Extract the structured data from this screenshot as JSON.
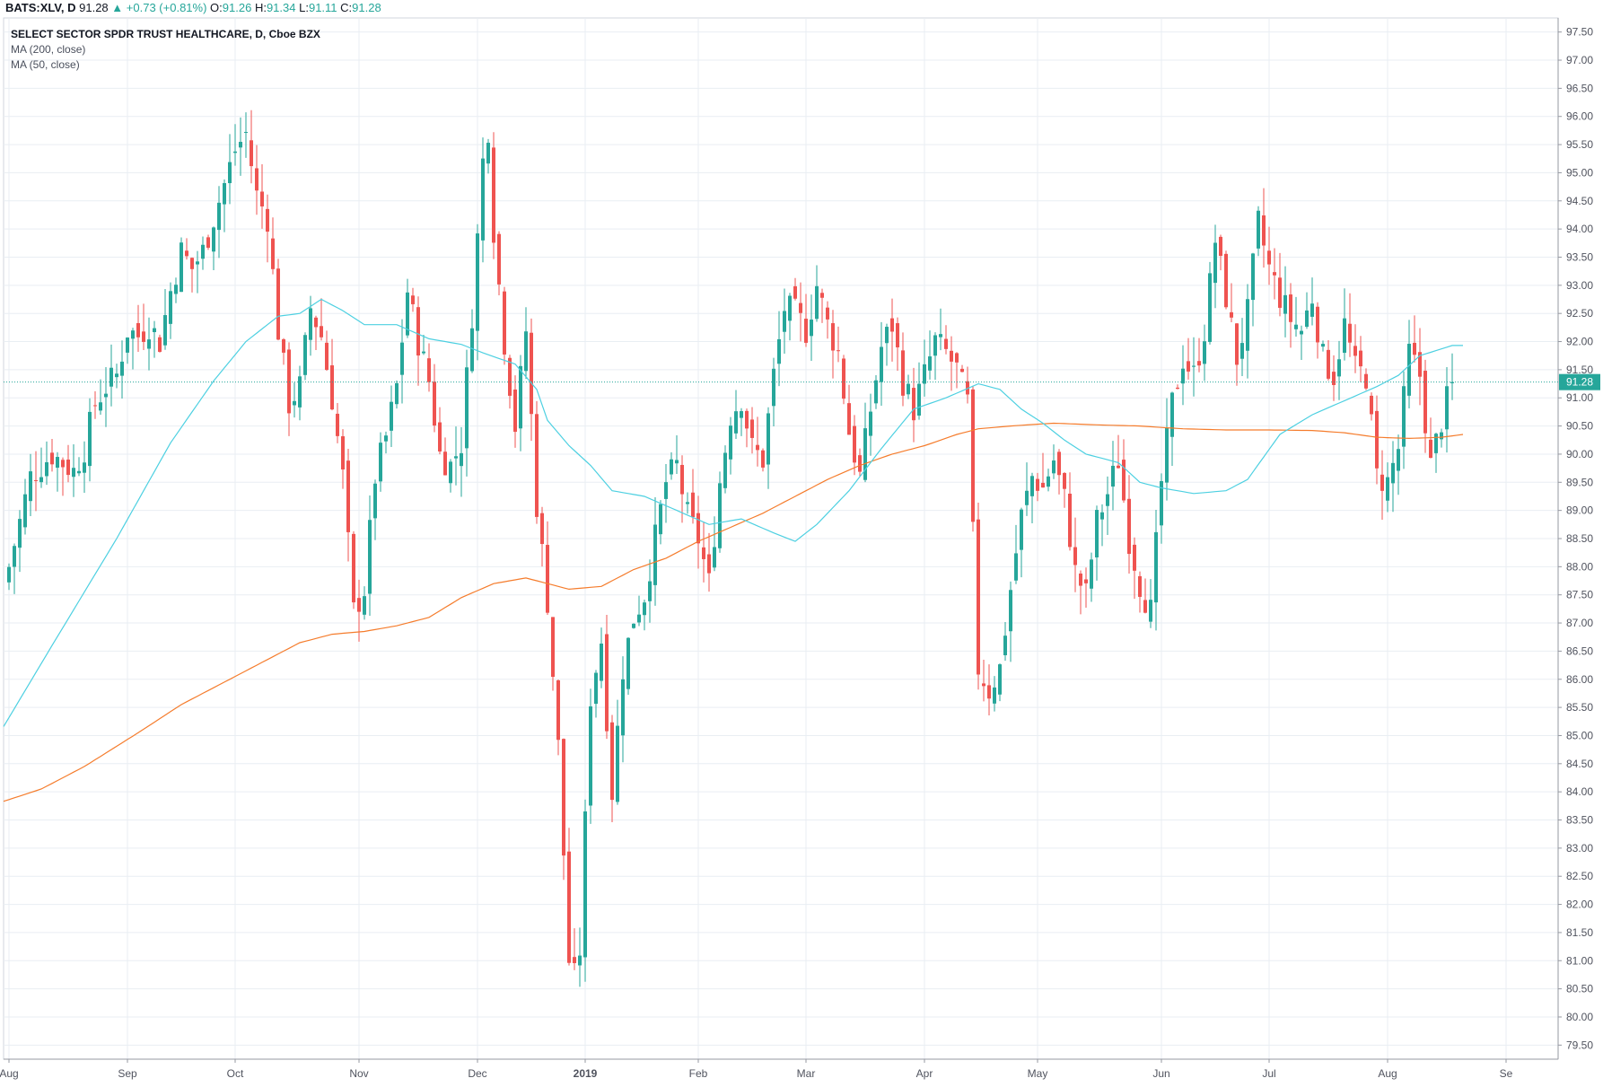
{
  "header": {
    "symbol": "BATS:XLV, D",
    "last": "91.28",
    "change": "+0.73 (+0.81%)",
    "open_label": "O:",
    "open": "91.26",
    "high_label": "H:",
    "high": "91.34",
    "low_label": "L:",
    "low": "91.11",
    "close_label": "C:",
    "close": "91.28"
  },
  "legend": {
    "title": "SELECT SECTOR SPDR TRUST HEALTHCARE, D, Cboe BZX",
    "ma200": "MA (200, close)",
    "ma50": "MA (50, close)"
  },
  "colors": {
    "up": "#26a69a",
    "down": "#ef5350",
    "ma50": "#4dd0e1",
    "ma200": "#f57c2c",
    "grid": "#e9eef3",
    "price_line": "#26a69a"
  },
  "chart_data": {
    "type": "candlestick",
    "title": "SELECT SECTOR SPDR TRUST HEALTHCARE, D, Cboe BZX",
    "ylim": [
      79.25,
      97.75
    ],
    "y_ticks": [
      "79.50",
      "80.00",
      "80.50",
      "81.00",
      "81.50",
      "82.00",
      "82.50",
      "83.00",
      "83.50",
      "84.00",
      "84.50",
      "85.00",
      "85.50",
      "86.00",
      "86.50",
      "87.00",
      "87.50",
      "88.00",
      "88.50",
      "89.00",
      "89.50",
      "90.00",
      "90.50",
      "91.00",
      "91.50",
      "92.00",
      "92.50",
      "93.00",
      "93.50",
      "94.00",
      "94.50",
      "95.00",
      "95.50",
      "96.00",
      "96.50",
      "97.00",
      "97.50"
    ],
    "x_ticks": [
      {
        "label": "Aug",
        "t": 0
      },
      {
        "label": "Sep",
        "t": 22
      },
      {
        "label": "Oct",
        "t": 42
      },
      {
        "label": "Nov",
        "t": 65
      },
      {
        "label": "Dec",
        "t": 87
      },
      {
        "label": "2019",
        "t": 107
      },
      {
        "label": "Feb",
        "t": 128
      },
      {
        "label": "Mar",
        "t": 148
      },
      {
        "label": "Apr",
        "t": 170
      },
      {
        "label": "May",
        "t": 191
      },
      {
        "label": "Jun",
        "t": 214
      },
      {
        "label": "Jul",
        "t": 234
      },
      {
        "label": "Aug",
        "t": 256
      },
      {
        "label": "Se",
        "t": 278
      }
    ],
    "last_price": 91.28,
    "last_price_label": "91.28",
    "ma50_anchors": [
      [
        -2,
        85.0
      ],
      [
        8,
        86.6
      ],
      [
        20,
        88.5
      ],
      [
        30,
        90.2
      ],
      [
        38,
        91.3
      ],
      [
        44,
        92.0
      ],
      [
        50,
        92.45
      ],
      [
        54,
        92.5
      ],
      [
        58,
        92.75
      ],
      [
        62,
        92.55
      ],
      [
        66,
        92.3
      ],
      [
        72,
        92.3
      ],
      [
        78,
        92.05
      ],
      [
        84,
        91.95
      ],
      [
        88,
        91.8
      ],
      [
        94,
        91.6
      ],
      [
        98,
        91.15
      ],
      [
        100,
        90.6
      ],
      [
        104,
        90.15
      ],
      [
        108,
        89.8
      ],
      [
        112,
        89.35
      ],
      [
        118,
        89.25
      ],
      [
        124,
        89.0
      ],
      [
        130,
        88.75
      ],
      [
        136,
        88.85
      ],
      [
        142,
        88.6
      ],
      [
        146,
        88.45
      ],
      [
        150,
        88.75
      ],
      [
        156,
        89.35
      ],
      [
        162,
        90.1
      ],
      [
        168,
        90.8
      ],
      [
        174,
        91.0
      ],
      [
        180,
        91.25
      ],
      [
        184,
        91.15
      ],
      [
        188,
        90.8
      ],
      [
        192,
        90.55
      ],
      [
        196,
        90.25
      ],
      [
        200,
        90.0
      ],
      [
        206,
        89.85
      ],
      [
        210,
        89.5
      ],
      [
        214,
        89.4
      ],
      [
        220,
        89.3
      ],
      [
        226,
        89.35
      ],
      [
        230,
        89.55
      ],
      [
        236,
        90.35
      ],
      [
        242,
        90.7
      ],
      [
        248,
        90.95
      ],
      [
        254,
        91.2
      ],
      [
        258,
        91.4
      ],
      [
        262,
        91.75
      ],
      [
        268,
        91.93
      ],
      [
        270,
        91.93
      ]
    ],
    "ma200_anchors": [
      [
        -2,
        83.8
      ],
      [
        6,
        84.05
      ],
      [
        14,
        84.45
      ],
      [
        24,
        85.05
      ],
      [
        32,
        85.55
      ],
      [
        40,
        85.95
      ],
      [
        48,
        86.35
      ],
      [
        54,
        86.65
      ],
      [
        60,
        86.8
      ],
      [
        66,
        86.85
      ],
      [
        72,
        86.95
      ],
      [
        78,
        87.1
      ],
      [
        84,
        87.45
      ],
      [
        90,
        87.7
      ],
      [
        96,
        87.8
      ],
      [
        104,
        87.6
      ],
      [
        110,
        87.65
      ],
      [
        116,
        87.95
      ],
      [
        122,
        88.15
      ],
      [
        128,
        88.45
      ],
      [
        134,
        88.7
      ],
      [
        140,
        88.95
      ],
      [
        146,
        89.25
      ],
      [
        152,
        89.55
      ],
      [
        158,
        89.8
      ],
      [
        164,
        90.0
      ],
      [
        170,
        90.15
      ],
      [
        176,
        90.35
      ],
      [
        180,
        90.45
      ],
      [
        186,
        90.5
      ],
      [
        194,
        90.55
      ],
      [
        202,
        90.52
      ],
      [
        210,
        90.5
      ],
      [
        218,
        90.45
      ],
      [
        226,
        90.43
      ],
      [
        234,
        90.43
      ],
      [
        242,
        90.42
      ],
      [
        248,
        90.38
      ],
      [
        254,
        90.3
      ],
      [
        260,
        90.28
      ],
      [
        266,
        90.3
      ],
      [
        270,
        90.35
      ]
    ],
    "close_anchors": [
      [
        0,
        88.0
      ],
      [
        4,
        89.6
      ],
      [
        8,
        90.0
      ],
      [
        12,
        89.7
      ],
      [
        14,
        90.1
      ],
      [
        16,
        90.9
      ],
      [
        18,
        91.2
      ],
      [
        20,
        91.4
      ],
      [
        22,
        92.2
      ],
      [
        24,
        92.1
      ],
      [
        26,
        92.3
      ],
      [
        28,
        92.0
      ],
      [
        30,
        92.9
      ],
      [
        32,
        93.6
      ],
      [
        34,
        93.3
      ],
      [
        36,
        93.6
      ],
      [
        38,
        94.2
      ],
      [
        40,
        94.8
      ],
      [
        42,
        95.4
      ],
      [
        44,
        95.7
      ],
      [
        46,
        94.6
      ],
      [
        48,
        94.2
      ],
      [
        50,
        92.2
      ],
      [
        52,
        90.9
      ],
      [
        54,
        91.2
      ],
      [
        56,
        92.6
      ],
      [
        58,
        92.1
      ],
      [
        60,
        91.0
      ],
      [
        62,
        89.6
      ],
      [
        64,
        87.2
      ],
      [
        66,
        87.6
      ],
      [
        68,
        89.6
      ],
      [
        70,
        90.3
      ],
      [
        72,
        91.2
      ],
      [
        74,
        92.9
      ],
      [
        76,
        92.0
      ],
      [
        78,
        91.3
      ],
      [
        80,
        90.0
      ],
      [
        82,
        89.8
      ],
      [
        84,
        90.2
      ],
      [
        86,
        92.5
      ],
      [
        88,
        95.2
      ],
      [
        89,
        95.8
      ],
      [
        90,
        94.0
      ],
      [
        92,
        92.0
      ],
      [
        94,
        90.5
      ],
      [
        96,
        92.2
      ],
      [
        98,
        89.1
      ],
      [
        100,
        87.4
      ],
      [
        102,
        84.8
      ],
      [
        104,
        81.0
      ],
      [
        105,
        80.7
      ],
      [
        106,
        81.2
      ],
      [
        108,
        85.7
      ],
      [
        110,
        86.7
      ],
      [
        112,
        84.0
      ],
      [
        114,
        86.2
      ],
      [
        116,
        87.1
      ],
      [
        118,
        87.5
      ],
      [
        120,
        88.5
      ],
      [
        122,
        89.5
      ],
      [
        124,
        89.8
      ],
      [
        126,
        88.9
      ],
      [
        128,
        88.5
      ],
      [
        130,
        87.7
      ],
      [
        132,
        89.5
      ],
      [
        134,
        90.7
      ],
      [
        136,
        91.0
      ],
      [
        138,
        90.1
      ],
      [
        140,
        89.9
      ],
      [
        142,
        91.4
      ],
      [
        144,
        92.6
      ],
      [
        146,
        92.5
      ],
      [
        148,
        92.2
      ],
      [
        150,
        93.0
      ],
      [
        152,
        92.3
      ],
      [
        154,
        91.8
      ],
      [
        156,
        90.4
      ],
      [
        158,
        89.6
      ],
      [
        160,
        90.8
      ],
      [
        162,
        91.9
      ],
      [
        164,
        92.3
      ],
      [
        166,
        91.3
      ],
      [
        168,
        90.8
      ],
      [
        170,
        91.4
      ],
      [
        172,
        92.0
      ],
      [
        174,
        91.8
      ],
      [
        176,
        91.5
      ],
      [
        178,
        90.9
      ],
      [
        180,
        86.2
      ],
      [
        182,
        85.8
      ],
      [
        184,
        86.2
      ],
      [
        186,
        87.6
      ],
      [
        188,
        88.9
      ],
      [
        190,
        89.6
      ],
      [
        192,
        89.4
      ],
      [
        194,
        89.9
      ],
      [
        196,
        89.2
      ],
      [
        198,
        87.9
      ],
      [
        200,
        87.5
      ],
      [
        202,
        88.8
      ],
      [
        204,
        89.3
      ],
      [
        206,
        89.9
      ],
      [
        208,
        88.5
      ],
      [
        210,
        87.7
      ],
      [
        212,
        87.2
      ],
      [
        214,
        89.5
      ],
      [
        216,
        90.9
      ],
      [
        218,
        91.7
      ],
      [
        220,
        91.4
      ],
      [
        222,
        92.2
      ],
      [
        224,
        93.8
      ],
      [
        226,
        92.8
      ],
      [
        228,
        91.7
      ],
      [
        230,
        92.5
      ],
      [
        232,
        94.1
      ],
      [
        234,
        93.3
      ],
      [
        236,
        92.8
      ],
      [
        238,
        92.4
      ],
      [
        240,
        92.2
      ],
      [
        242,
        92.8
      ],
      [
        244,
        91.7
      ],
      [
        246,
        91.4
      ],
      [
        248,
        92.3
      ],
      [
        250,
        91.5
      ],
      [
        252,
        91.4
      ],
      [
        254,
        89.6
      ],
      [
        256,
        89.5
      ],
      [
        258,
        90.1
      ],
      [
        260,
        91.8
      ],
      [
        262,
        91.4
      ],
      [
        264,
        89.8
      ],
      [
        266,
        90.6
      ],
      [
        268,
        91.28
      ]
    ],
    "series_names": [
      "SELECT SECTOR SPDR TRUST HEALTHCARE",
      "MA (200, close)",
      "MA (50, close)"
    ]
  }
}
